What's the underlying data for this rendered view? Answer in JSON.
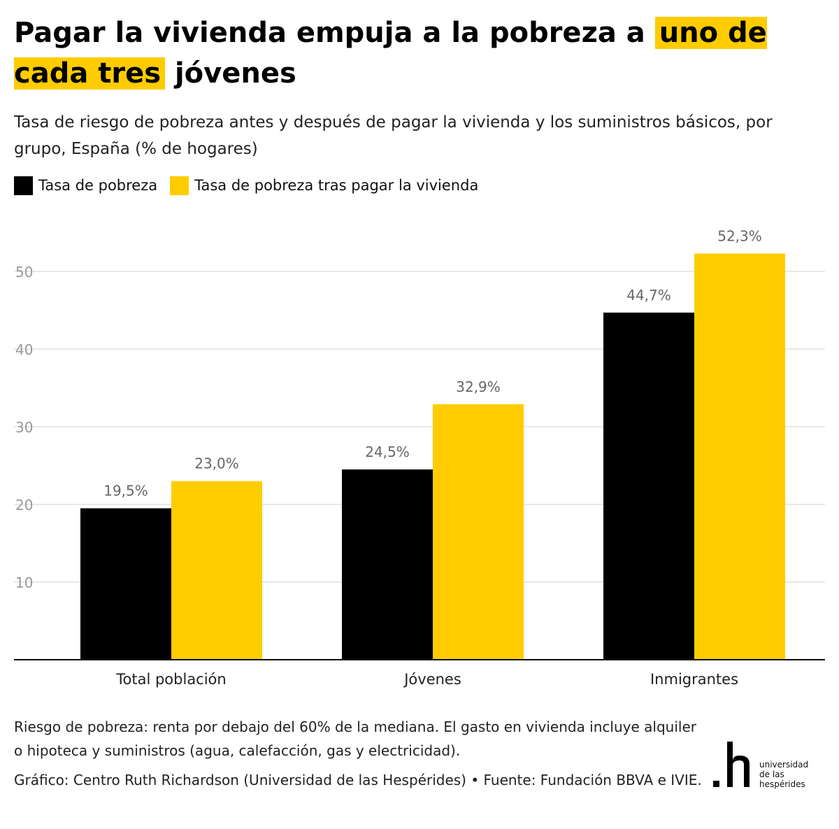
{
  "title": {
    "part1": "Pagar la vivienda empuja a la pobreza a ",
    "highlight": "uno de cada tres",
    "part2": " jóvenes"
  },
  "subtitle": "Tasa de riesgo de pobreza antes y después de pagar la vivienda y los suministros básicos, por grupo, España (% de hogares)",
  "footnote": "Riesgo de pobreza: renta por debajo del 60% de la mediana. El gasto en vivienda incluye alquiler o hipoteca y suministros (agua, calefacción, gas y electricidad).",
  "credit": "Gráfico: Centro Ruth Richardson (Universidad de las Hespérides) • Fuente: Fundación BBVA e IVIE.",
  "logo": {
    "words": [
      "universidad",
      "de las",
      "hespérides"
    ]
  },
  "colors": {
    "series1": "#000000",
    "series2": "#ffcc00",
    "grid": "#e0e0e0",
    "tick": "#999999",
    "label": "#666666"
  },
  "chart_data": {
    "type": "bar",
    "categories": [
      "Total población",
      "Jóvenes",
      "Inmigrantes"
    ],
    "series": [
      {
        "name": "Tasa de pobreza",
        "values": [
          19.5,
          24.5,
          44.7
        ],
        "labels": [
          "19,5%",
          "24,5%",
          "44,7%"
        ]
      },
      {
        "name": "Tasa de pobreza tras pagar la vivienda",
        "values": [
          23.0,
          32.9,
          52.3
        ],
        "labels": [
          "23,0%",
          "32,9%",
          "52,3%"
        ]
      }
    ],
    "yticks": [
      10,
      20,
      30,
      40,
      50
    ],
    "ylim": [
      0,
      55
    ],
    "grid": true,
    "legend": "top-left"
  }
}
